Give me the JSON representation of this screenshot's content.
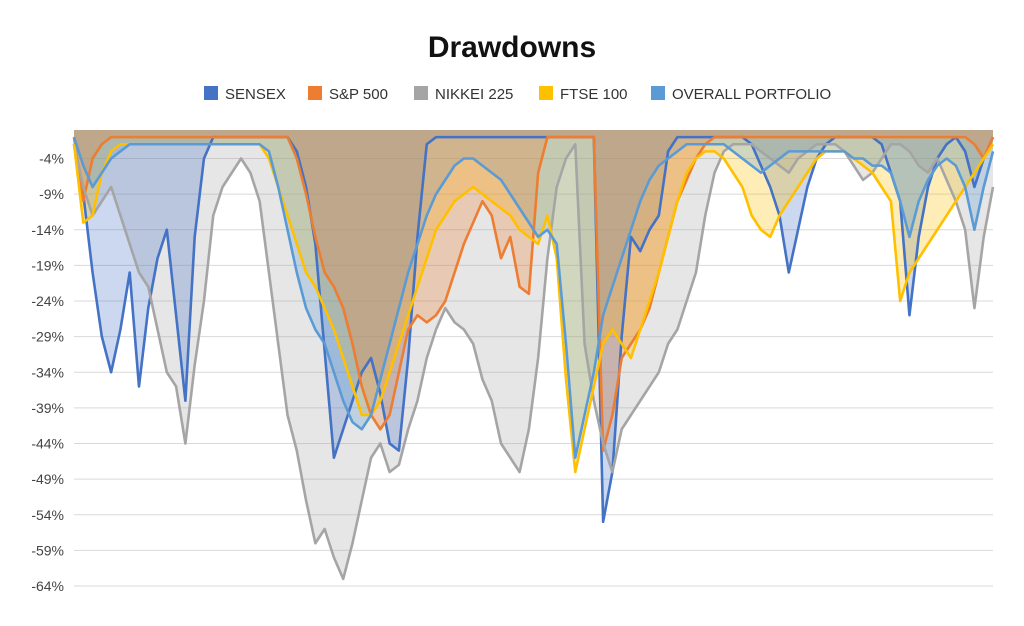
{
  "chart_data": {
    "type": "area",
    "title": "Drawdowns",
    "xlabel": "",
    "ylabel": "",
    "ylim": [
      -64,
      0
    ],
    "yticks": [
      -4,
      -9,
      -14,
      -19,
      -24,
      -29,
      -34,
      -39,
      -44,
      -49,
      -54,
      -59,
      -64
    ],
    "ytick_labels": [
      "-4%",
      "-9%",
      "-14%",
      "-19%",
      "-24%",
      "-29%",
      "-34%",
      "-39%",
      "-44%",
      "-49%",
      "-54%",
      "-59%",
      "-64%"
    ],
    "grid": true,
    "legend_position": "top",
    "x": [
      0,
      1,
      2,
      3,
      4,
      5,
      6,
      7,
      8,
      9,
      10,
      11,
      12,
      13,
      14,
      15,
      16,
      17,
      18,
      19,
      20,
      21,
      22,
      23,
      24,
      25,
      26,
      27,
      28,
      29,
      30,
      31,
      32,
      33,
      34,
      35,
      36,
      37,
      38,
      39,
      40,
      41,
      42,
      43,
      44,
      45,
      46,
      47,
      48,
      49,
      50,
      51,
      52,
      53,
      54,
      55,
      56,
      57,
      58,
      59,
      60,
      61,
      62,
      63,
      64,
      65,
      66,
      67,
      68,
      69,
      70,
      71,
      72,
      73,
      74,
      75,
      76,
      77,
      78,
      79,
      80,
      81,
      82,
      83,
      84,
      85,
      86,
      87,
      88,
      89,
      90,
      91,
      92,
      93,
      94,
      95,
      96,
      97,
      98,
      99
    ],
    "series": [
      {
        "name": "SENSEX",
        "color": "#4472C4",
        "values": [
          -2,
          -9,
          -20,
          -29,
          -34,
          -28,
          -20,
          -36,
          -25,
          -18,
          -14,
          -26,
          -38,
          -15,
          -4,
          -1,
          -1,
          -1,
          -1,
          -1,
          -1,
          -1,
          -1,
          -1,
          -3,
          -8,
          -16,
          -31,
          -46,
          -42,
          -38,
          -34,
          -32,
          -37,
          -44,
          -45,
          -32,
          -15,
          -2,
          -1,
          -1,
          -1,
          -1,
          -1,
          -1,
          -1,
          -1,
          -1,
          -1,
          -1,
          -1,
          -1,
          -1,
          -1,
          -1,
          -1,
          -1,
          -55,
          -48,
          -29,
          -15,
          -17,
          -14,
          -12,
          -3,
          -1,
          -1,
          -1,
          -1,
          -1,
          -1,
          -1,
          -1,
          -2,
          -5,
          -8,
          -12,
          -20,
          -14,
          -8,
          -4,
          -2,
          -1,
          -1,
          -1,
          -1,
          -1,
          -2,
          -6,
          -10,
          -26,
          -15,
          -8,
          -4,
          -2,
          -1,
          -3,
          -8,
          -4,
          -1
        ]
      },
      {
        "name": "S&P 500",
        "color": "#ED7D31",
        "values": [
          -1,
          -10,
          -4,
          -2,
          -1,
          -1,
          -1,
          -1,
          -1,
          -1,
          -1,
          -1,
          -1,
          -1,
          -1,
          -1,
          -1,
          -1,
          -1,
          -1,
          -1,
          -1,
          -1,
          -1,
          -4,
          -9,
          -15,
          -20,
          -22,
          -25,
          -30,
          -36,
          -40,
          -42,
          -40,
          -34,
          -28,
          -26,
          -27,
          -26,
          -24,
          -20,
          -16,
          -13,
          -10,
          -12,
          -18,
          -15,
          -22,
          -23,
          -6,
          -1,
          -1,
          -1,
          -1,
          -1,
          -1,
          -45,
          -40,
          -32,
          -30,
          -28,
          -25,
          -20,
          -15,
          -10,
          -7,
          -4,
          -2,
          -1,
          -1,
          -1,
          -1,
          -1,
          -1,
          -1,
          -1,
          -1,
          -1,
          -1,
          -1,
          -1,
          -1,
          -1,
          -1,
          -1,
          -1,
          -1,
          -1,
          -1,
          -1,
          -1,
          -1,
          -1,
          -1,
          -1,
          -1,
          -2,
          -4,
          -1
        ]
      },
      {
        "name": "NIKKEI 225",
        "color": "#A5A5A5",
        "values": [
          -2,
          -8,
          -12,
          -10,
          -8,
          -12,
          -16,
          -20,
          -22,
          -28,
          -34,
          -36,
          -44,
          -33,
          -24,
          -12,
          -8,
          -6,
          -4,
          -6,
          -10,
          -20,
          -30,
          -40,
          -45,
          -52,
          -58,
          -56,
          -60,
          -63,
          -58,
          -52,
          -46,
          -44,
          -48,
          -47,
          -42,
          -38,
          -32,
          -28,
          -25,
          -27,
          -28,
          -30,
          -35,
          -38,
          -44,
          -46,
          -48,
          -42,
          -32,
          -18,
          -8,
          -4,
          -2,
          -30,
          -38,
          -44,
          -48,
          -42,
          -40,
          -38,
          -36,
          -34,
          -30,
          -28,
          -24,
          -20,
          -12,
          -6,
          -3,
          -2,
          -2,
          -2,
          -3,
          -4,
          -5,
          -6,
          -4,
          -3,
          -2,
          -2,
          -2,
          -3,
          -5,
          -7,
          -6,
          -4,
          -2,
          -2,
          -3,
          -5,
          -6,
          -4,
          -7,
          -10,
          -14,
          -25,
          -15,
          -8
        ]
      },
      {
        "name": "FTSE 100",
        "color": "#FFC000",
        "values": [
          -2,
          -13,
          -12,
          -6,
          -3,
          -2,
          -2,
          -2,
          -2,
          -2,
          -2,
          -2,
          -2,
          -2,
          -2,
          -2,
          -2,
          -2,
          -2,
          -2,
          -2,
          -4,
          -8,
          -12,
          -16,
          -20,
          -22,
          -25,
          -28,
          -32,
          -36,
          -40,
          -40,
          -38,
          -34,
          -30,
          -26,
          -22,
          -18,
          -14,
          -12,
          -10,
          -9,
          -8,
          -9,
          -10,
          -11,
          -12,
          -14,
          -15,
          -16,
          -12,
          -18,
          -35,
          -48,
          -42,
          -36,
          -30,
          -28,
          -30,
          -32,
          -28,
          -24,
          -20,
          -15,
          -10,
          -6,
          -4,
          -3,
          -3,
          -4,
          -6,
          -8,
          -12,
          -14,
          -15,
          -12,
          -10,
          -8,
          -6,
          -4,
          -3,
          -3,
          -3,
          -4,
          -5,
          -6,
          -8,
          -10,
          -24,
          -20,
          -18,
          -16,
          -14,
          -12,
          -10,
          -8,
          -6,
          -4,
          -2
        ]
      },
      {
        "name": "OVERALL PORTFOLIO",
        "color": "#5B9BD5",
        "values": [
          -1,
          -5,
          -8,
          -6,
          -4,
          -3,
          -2,
          -2,
          -2,
          -2,
          -2,
          -2,
          -2,
          -2,
          -2,
          -2,
          -2,
          -2,
          -2,
          -2,
          -2,
          -3,
          -8,
          -14,
          -20,
          -25,
          -28,
          -30,
          -34,
          -38,
          -41,
          -42,
          -40,
          -35,
          -30,
          -25,
          -20,
          -16,
          -12,
          -9,
          -7,
          -5,
          -4,
          -4,
          -5,
          -6,
          -7,
          -9,
          -11,
          -13,
          -15,
          -14,
          -16,
          -30,
          -46,
          -40,
          -34,
          -26,
          -22,
          -18,
          -14,
          -10,
          -7,
          -5,
          -4,
          -3,
          -2,
          -2,
          -2,
          -2,
          -2,
          -3,
          -4,
          -5,
          -6,
          -5,
          -4,
          -3,
          -3,
          -3,
          -3,
          -3,
          -3,
          -3,
          -4,
          -4,
          -5,
          -5,
          -6,
          -10,
          -15,
          -10,
          -7,
          -5,
          -4,
          -5,
          -8,
          -14,
          -8,
          -3
        ]
      }
    ]
  }
}
